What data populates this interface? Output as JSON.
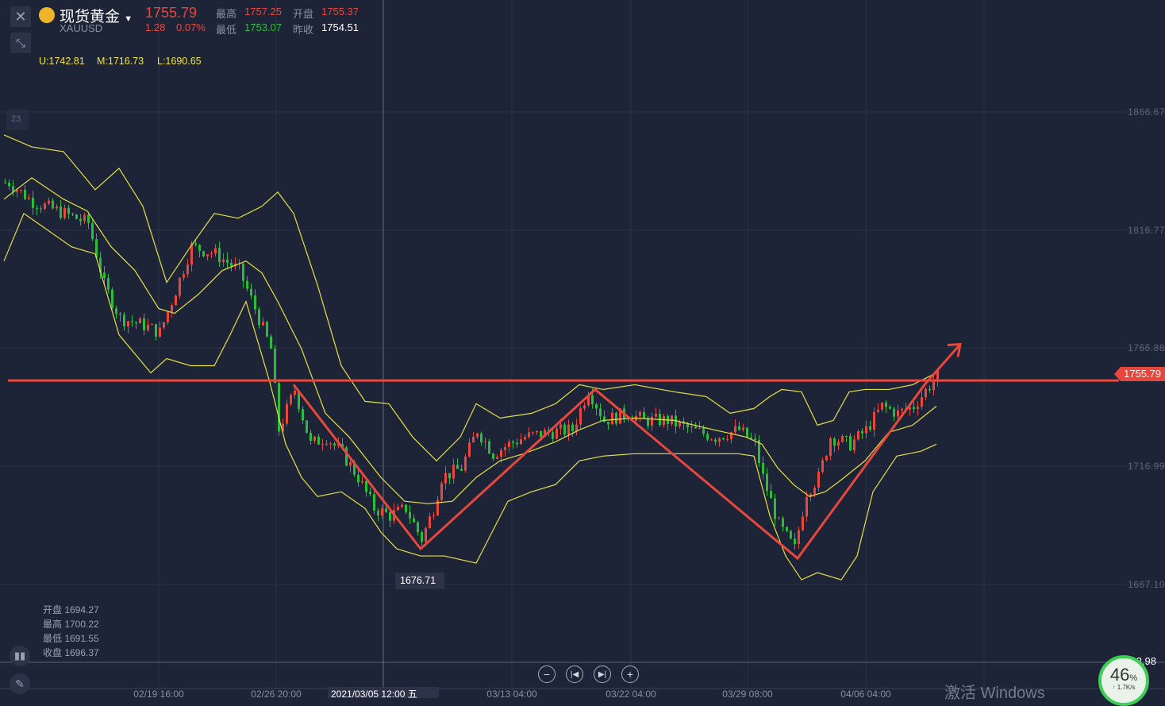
{
  "header": {
    "name": "现货黄金",
    "symbol": "XAUUSD",
    "price": "1755.79",
    "change": "1.28",
    "change_pct": "0.07%",
    "high_label": "最高",
    "high": "1757.25",
    "open_label": "开盘",
    "open": "1755.37",
    "low_label": "最低",
    "low": "1753.07",
    "prev_close_label": "昨收",
    "prev_close": "1754.51"
  },
  "indicator": {
    "u": "U:1742.81",
    "m": "M:1716.73",
    "l": "L:1690.65"
  },
  "corner_label": "23",
  "hover_ohlc": {
    "open": "开盘 1694.27",
    "high": "最高 1700.22",
    "low": "最低 1691.55",
    "close": "收盘 1696.37"
  },
  "current_price_tag": "1755.79",
  "min_price_tag": "1676.71",
  "bottom_price_tag": "1693.98",
  "crosshair_time": "2021/03/05 12:00 五",
  "speed_widget": {
    "percent": "46",
    "unit": "%",
    "rate": "1.7K/s"
  },
  "watermark": "激活 Windows",
  "colors": {
    "up": "#e8473b",
    "down": "#2bbd3a",
    "band": "#e6e03c",
    "annotation": "#e8473b",
    "bg": "#1d2438"
  },
  "chart_data": {
    "type": "candlestick",
    "title": "现货黄金",
    "y_ticks": [
      "1866.67",
      "1816.77",
      "1766.88",
      "1716.99",
      "1667.10"
    ],
    "ylim": [
      1640,
      1885
    ],
    "x_ticks": [
      "02/19 16:00",
      "02/26 20:00",
      "03/05 12:00",
      "03/13 04:00",
      "03/22 04:00",
      "03/29 08:00",
      "04/06 04:00"
    ],
    "candle_count": 236,
    "close_path": [
      [
        1,
        1837
      ],
      [
        7,
        1829
      ],
      [
        15,
        1824
      ],
      [
        21,
        1820
      ],
      [
        25,
        1794
      ],
      [
        29,
        1780
      ],
      [
        35,
        1777
      ],
      [
        39,
        1774
      ],
      [
        42,
        1787
      ],
      [
        47,
        1810
      ],
      [
        53,
        1807
      ],
      [
        59,
        1800
      ],
      [
        63,
        1784
      ],
      [
        67,
        1767
      ],
      [
        69,
        1733
      ],
      [
        73,
        1750
      ],
      [
        77,
        1727
      ],
      [
        81,
        1730
      ],
      [
        85,
        1723
      ],
      [
        89,
        1713
      ],
      [
        93,
        1700
      ],
      [
        97,
        1697
      ],
      [
        101,
        1700
      ],
      [
        105,
        1687
      ],
      [
        108,
        1700
      ],
      [
        110,
        1713
      ],
      [
        115,
        1717
      ],
      [
        119,
        1733
      ],
      [
        123,
        1723
      ],
      [
        127,
        1727
      ],
      [
        131,
        1730
      ],
      [
        137,
        1732
      ],
      [
        143,
        1733
      ],
      [
        147,
        1750
      ],
      [
        151,
        1737
      ],
      [
        157,
        1740
      ],
      [
        161,
        1737
      ],
      [
        167,
        1737
      ],
      [
        173,
        1733
      ],
      [
        179,
        1730
      ],
      [
        185,
        1733
      ],
      [
        189,
        1727
      ],
      [
        191,
        1713
      ],
      [
        195,
        1693
      ],
      [
        199,
        1683
      ],
      [
        202,
        1707
      ],
      [
        205,
        1713
      ],
      [
        208,
        1730
      ],
      [
        213,
        1727
      ],
      [
        217,
        1733
      ],
      [
        221,
        1743
      ],
      [
        225,
        1740
      ],
      [
        229,
        1743
      ],
      [
        235,
        1756
      ]
    ],
    "bollinger": {
      "upper": [
        [
          0,
          1857
        ],
        [
          7,
          1852
        ],
        [
          15,
          1850
        ],
        [
          23,
          1834
        ],
        [
          29,
          1843
        ],
        [
          35,
          1827
        ],
        [
          41,
          1795
        ],
        [
          47,
          1810
        ],
        [
          53,
          1824
        ],
        [
          59,
          1822
        ],
        [
          65,
          1827
        ],
        [
          69,
          1833
        ],
        [
          73,
          1824
        ],
        [
          79,
          1794
        ],
        [
          85,
          1760
        ],
        [
          91,
          1745
        ],
        [
          97,
          1744
        ],
        [
          103,
          1730
        ],
        [
          109,
          1720
        ],
        [
          115,
          1730
        ],
        [
          119,
          1744
        ],
        [
          125,
          1738
        ],
        [
          133,
          1740
        ],
        [
          139,
          1744
        ],
        [
          145,
          1752
        ],
        [
          151,
          1750
        ],
        [
          159,
          1752
        ],
        [
          169,
          1749
        ],
        [
          177,
          1747
        ],
        [
          183,
          1740
        ],
        [
          189,
          1742
        ],
        [
          193,
          1747
        ],
        [
          196,
          1750
        ],
        [
          201,
          1749
        ],
        [
          205,
          1735
        ],
        [
          209,
          1737
        ],
        [
          213,
          1749
        ],
        [
          217,
          1750
        ],
        [
          223,
          1750
        ],
        [
          229,
          1752
        ],
        [
          235,
          1757
        ]
      ],
      "middle": [
        [
          0,
          1830
        ],
        [
          7,
          1839
        ],
        [
          15,
          1830
        ],
        [
          21,
          1825
        ],
        [
          27,
          1810
        ],
        [
          33,
          1800
        ],
        [
          39,
          1784
        ],
        [
          43,
          1782
        ],
        [
          49,
          1790
        ],
        [
          55,
          1800
        ],
        [
          61,
          1804
        ],
        [
          65,
          1799
        ],
        [
          69,
          1787
        ],
        [
          75,
          1767
        ],
        [
          81,
          1740
        ],
        [
          87,
          1730
        ],
        [
          95,
          1713
        ],
        [
          101,
          1703
        ],
        [
          107,
          1702
        ],
        [
          113,
          1703
        ],
        [
          119,
          1713
        ],
        [
          125,
          1720
        ],
        [
          131,
          1723
        ],
        [
          139,
          1728
        ],
        [
          145,
          1733
        ],
        [
          151,
          1737
        ],
        [
          159,
          1738
        ],
        [
          169,
          1737
        ],
        [
          179,
          1733
        ],
        [
          187,
          1730
        ],
        [
          191,
          1727
        ],
        [
          195,
          1717
        ],
        [
          199,
          1710
        ],
        [
          203,
          1705
        ],
        [
          207,
          1707
        ],
        [
          211,
          1712
        ],
        [
          217,
          1720
        ],
        [
          223,
          1732
        ],
        [
          229,
          1735
        ],
        [
          235,
          1743
        ]
      ],
      "lower": [
        [
          0,
          1804
        ],
        [
          5,
          1824
        ],
        [
          11,
          1817
        ],
        [
          17,
          1810
        ],
        [
          23,
          1807
        ],
        [
          29,
          1773
        ],
        [
          37,
          1757
        ],
        [
          41,
          1763
        ],
        [
          47,
          1760
        ],
        [
          53,
          1760
        ],
        [
          57,
          1773
        ],
        [
          61,
          1787
        ],
        [
          67,
          1753
        ],
        [
          71,
          1727
        ],
        [
          75,
          1713
        ],
        [
          79,
          1705
        ],
        [
          85,
          1707
        ],
        [
          91,
          1700
        ],
        [
          95,
          1690
        ],
        [
          99,
          1683
        ],
        [
          105,
          1680
        ],
        [
          111,
          1680
        ],
        [
          119,
          1677
        ],
        [
          123,
          1690
        ],
        [
          127,
          1703
        ],
        [
          133,
          1707
        ],
        [
          139,
          1710
        ],
        [
          145,
          1720
        ],
        [
          151,
          1722
        ],
        [
          159,
          1723
        ],
        [
          169,
          1723
        ],
        [
          179,
          1723
        ],
        [
          185,
          1723
        ],
        [
          189,
          1722
        ],
        [
          193,
          1697
        ],
        [
          197,
          1680
        ],
        [
          201,
          1670
        ],
        [
          205,
          1673
        ],
        [
          211,
          1670
        ],
        [
          215,
          1680
        ],
        [
          219,
          1707
        ],
        [
          225,
          1722
        ],
        [
          231,
          1724
        ],
        [
          235,
          1727
        ]
      ]
    },
    "annotation_line": [
      [
        73,
        1752
      ],
      [
        105,
        1683
      ],
      [
        149,
        1750
      ],
      [
        200,
        1679
      ],
      [
        232,
        1752
      ],
      [
        241,
        1769
      ]
    ],
    "horizontal_line": 1755.79
  }
}
